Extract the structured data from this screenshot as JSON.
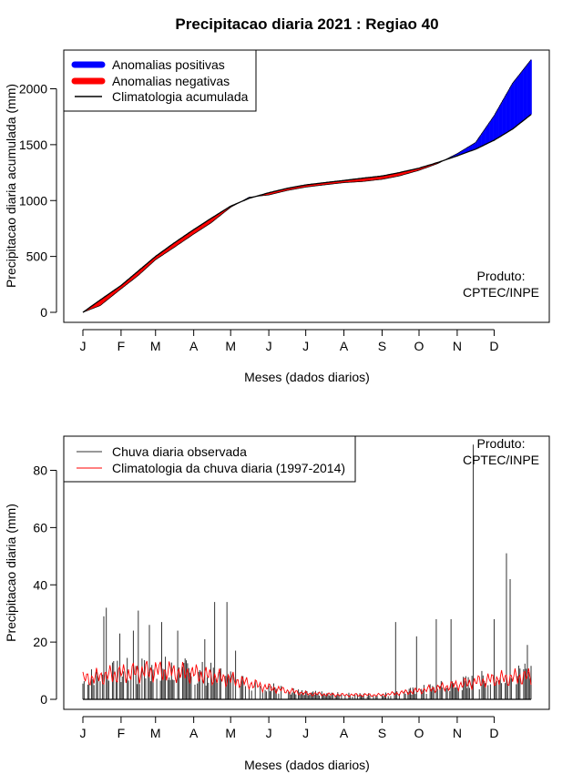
{
  "title": "Precipitacao diaria 2021 : Regiao 40",
  "credit": {
    "line1": "Produto:",
    "line2": "CPTEC/INPE"
  },
  "colors": {
    "positive": "#0000ff",
    "negative": "#ff0000",
    "climatology_cum": "#000000",
    "observed": "#333333",
    "climatology_daily": "#ff0000"
  },
  "chart_data": [
    {
      "type": "area",
      "title": "Precipitacao diaria 2021 : Regiao 40",
      "xlabel": "Meses (dados diarios)",
      "ylabel": "Precipitacao diaria acumulada (mm)",
      "x_ticks": [
        "J",
        "F",
        "M",
        "A",
        "M",
        "J",
        "J",
        "A",
        "S",
        "O",
        "N",
        "D"
      ],
      "xlim": [
        1,
        365
      ],
      "ylim": [
        0,
        2250
      ],
      "y_ticks": [
        0,
        500,
        1000,
        1500,
        2000
      ],
      "legend": [
        "Anomalias positivas",
        "Anomalias negativas",
        "Climatologia acumulada"
      ],
      "legend_position": "top-left",
      "x": [
        1,
        15,
        32,
        46,
        60,
        75,
        91,
        105,
        121,
        136,
        152,
        167,
        182,
        197,
        213,
        228,
        244,
        258,
        274,
        289,
        305,
        320,
        335,
        350,
        365
      ],
      "climatology_cumulative": [
        0,
        110,
        240,
        370,
        500,
        620,
        740,
        840,
        950,
        1020,
        1070,
        1110,
        1140,
        1160,
        1180,
        1200,
        1220,
        1250,
        1290,
        1340,
        1400,
        1460,
        1540,
        1640,
        1770
      ],
      "observed_cumulative": [
        0,
        60,
        210,
        330,
        470,
        580,
        700,
        800,
        940,
        1030,
        1050,
        1090,
        1120,
        1140,
        1160,
        1170,
        1190,
        1220,
        1270,
        1330,
        1420,
        1520,
        1760,
        2050,
        2260
      ]
    },
    {
      "type": "bar",
      "xlabel": "Meses (dados diarios)",
      "ylabel": "Precipitacao diaria (mm)",
      "x_ticks": [
        "J",
        "F",
        "M",
        "A",
        "M",
        "J",
        "J",
        "A",
        "S",
        "O",
        "N",
        "D"
      ],
      "xlim": [
        1,
        365
      ],
      "ylim": [
        0,
        90
      ],
      "y_ticks": [
        0,
        20,
        40,
        60,
        80
      ],
      "legend": [
        "Chuva diaria observada",
        "Climatologia da chuva diaria (1997-2014)"
      ],
      "legend_position": "top-left",
      "peaks": [
        {
          "day": 18,
          "value": 29
        },
        {
          "day": 20,
          "value": 32
        },
        {
          "day": 31,
          "value": 23
        },
        {
          "day": 42,
          "value": 24
        },
        {
          "day": 46,
          "value": 31
        },
        {
          "day": 55,
          "value": 26
        },
        {
          "day": 65,
          "value": 27
        },
        {
          "day": 78,
          "value": 24
        },
        {
          "day": 100,
          "value": 21
        },
        {
          "day": 108,
          "value": 34
        },
        {
          "day": 118,
          "value": 34
        },
        {
          "day": 125,
          "value": 17
        },
        {
          "day": 255,
          "value": 27
        },
        {
          "day": 272,
          "value": 22
        },
        {
          "day": 288,
          "value": 28
        },
        {
          "day": 300,
          "value": 28
        },
        {
          "day": 318,
          "value": 89
        },
        {
          "day": 335,
          "value": 28
        },
        {
          "day": 345,
          "value": 51
        },
        {
          "day": 348,
          "value": 42
        },
        {
          "day": 362,
          "value": 19
        }
      ],
      "climatology_daily": {
        "x": [
          1,
          32,
          60,
          91,
          121,
          152,
          182,
          213,
          244,
          274,
          305,
          335,
          365
        ],
        "values": [
          7,
          9,
          10,
          9,
          7,
          4,
          2,
          1.5,
          1.5,
          3,
          5,
          7,
          8
        ]
      }
    }
  ]
}
